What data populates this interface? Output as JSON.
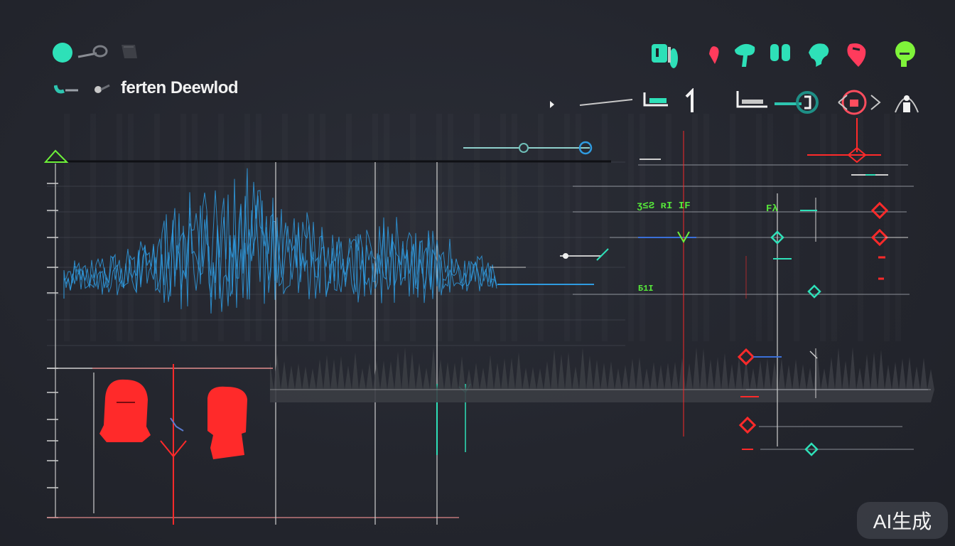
{
  "app": {
    "title": "ferten Deewlod"
  },
  "toolbar_left": {
    "icons": [
      "circle-icon",
      "cable-icon",
      "dimmed-cup-icon"
    ],
    "row2_icons": [
      "connector-icon",
      "cursor-icon"
    ]
  },
  "toolbar_right": {
    "icons": [
      {
        "name": "battery-icon",
        "color": "#2ee0b8"
      },
      {
        "name": "pin-icon",
        "color": "#ff3b5c"
      },
      {
        "name": "mushroom-icon",
        "color": "#2ee0b8"
      },
      {
        "name": "split-icon",
        "color": "#2ee0b8"
      },
      {
        "name": "bell-icon",
        "color": "#2ee0b8"
      },
      {
        "name": "speaker-icon",
        "color": "#ff3b5c"
      },
      {
        "name": "drop-icon",
        "color": "#7ff33a"
      }
    ],
    "tools": [
      "play-icon",
      "level-line-icon",
      "bracket-icon",
      "one-icon",
      "tray-icon",
      "ring-icon",
      "face-icon",
      "figure-icon"
    ]
  },
  "panel": {
    "label_top": "ʒ≤Ƨ ʀI IF",
    "label_mid": "Ƃ1I",
    "label_side": "Fλ"
  },
  "colors": {
    "waveform": "#2f9be0",
    "accent_red": "#ff2a2a",
    "accent_teal": "#2ee0b8",
    "accent_green": "#6ef23a",
    "grid": "#4a4e58"
  },
  "watermark": "AI生成"
}
